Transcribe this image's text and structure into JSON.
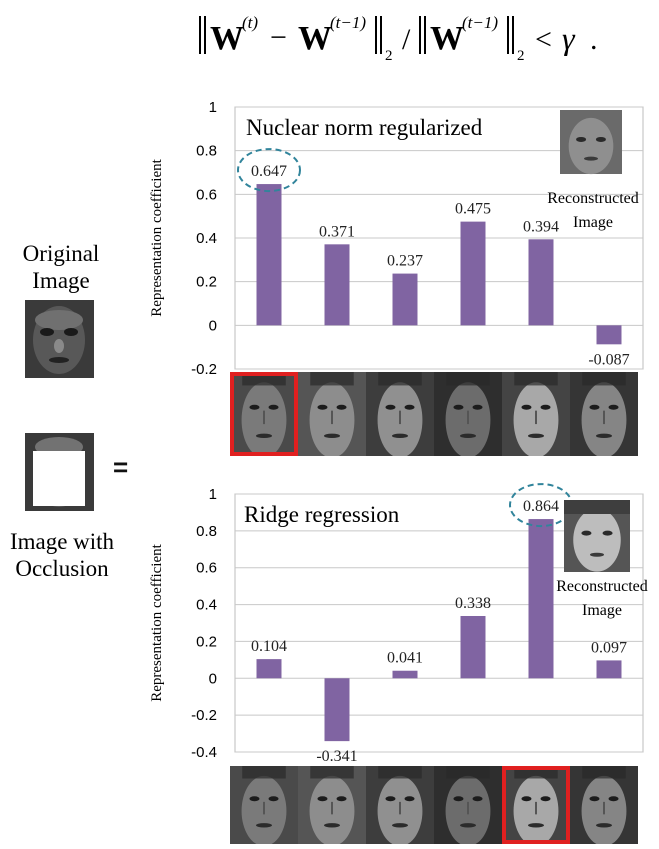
{
  "formula": {
    "text": "‖W(t) − W(t−1)‖2 / ‖W(t−1)‖2 < γ .",
    "W": "W",
    "t": "(t)",
    "t_minus_1": "(t−1)",
    "minus": "−",
    "slash": "/",
    "sub": "2",
    "lt": "<",
    "gamma": "γ",
    "period": "."
  },
  "left_panel": {
    "original_label_line1": "Original",
    "original_label_line2": "Image",
    "occlusion_label_line1": "Image with",
    "occlusion_label_line2": "Occlusion",
    "equals": "="
  },
  "chart_data": [
    {
      "type": "bar",
      "title": "Nuclear norm regularized",
      "ylabel": "Representation coefficient",
      "xlabel": "",
      "categories": [
        "1",
        "2",
        "3",
        "4",
        "5",
        "6"
      ],
      "values": [
        0.647,
        0.371,
        0.237,
        0.475,
        0.394,
        -0.087
      ],
      "value_labels": [
        "0.647",
        "0.371",
        "0.237",
        "0.475",
        "0.394",
        "-0.087"
      ],
      "ylim": [
        -0.2,
        1
      ],
      "yticks": [
        "1",
        "0.8",
        "0.6",
        "0.4",
        "0.2",
        "0",
        "-0.2"
      ],
      "ytick_values": [
        1,
        0.8,
        0.6,
        0.4,
        0.2,
        0,
        -0.2
      ],
      "grid": true,
      "bar_color": "#8064a2",
      "highlight_index": 0,
      "highlight_color": "#31849b",
      "selected_face_index": 0,
      "selected_face_color": "#e02020",
      "inset_label_line1": "Reconstructed",
      "inset_label_line2": "Image"
    },
    {
      "type": "bar",
      "title": "Ridge regression",
      "ylabel": "Representation coefficient",
      "xlabel": "",
      "categories": [
        "1",
        "2",
        "3",
        "4",
        "5",
        "6"
      ],
      "values": [
        0.104,
        -0.341,
        0.041,
        0.338,
        0.864,
        0.097
      ],
      "value_labels": [
        "0.104",
        "-0.341",
        "0.041",
        "0.338",
        "0.864",
        "0.097"
      ],
      "ylim": [
        -0.4,
        1
      ],
      "yticks": [
        "1",
        "0.8",
        "0.6",
        "0.4",
        "0.2",
        "0",
        "-0.2",
        "-0.4"
      ],
      "ytick_values": [
        1,
        0.8,
        0.6,
        0.4,
        0.2,
        0,
        -0.2,
        -0.4
      ],
      "grid": true,
      "bar_color": "#8064a2",
      "highlight_index": 4,
      "highlight_color": "#31849b",
      "selected_face_index": 4,
      "selected_face_color": "#e02020",
      "inset_label_line1": "Reconstructed",
      "inset_label_line2": "Image"
    }
  ]
}
